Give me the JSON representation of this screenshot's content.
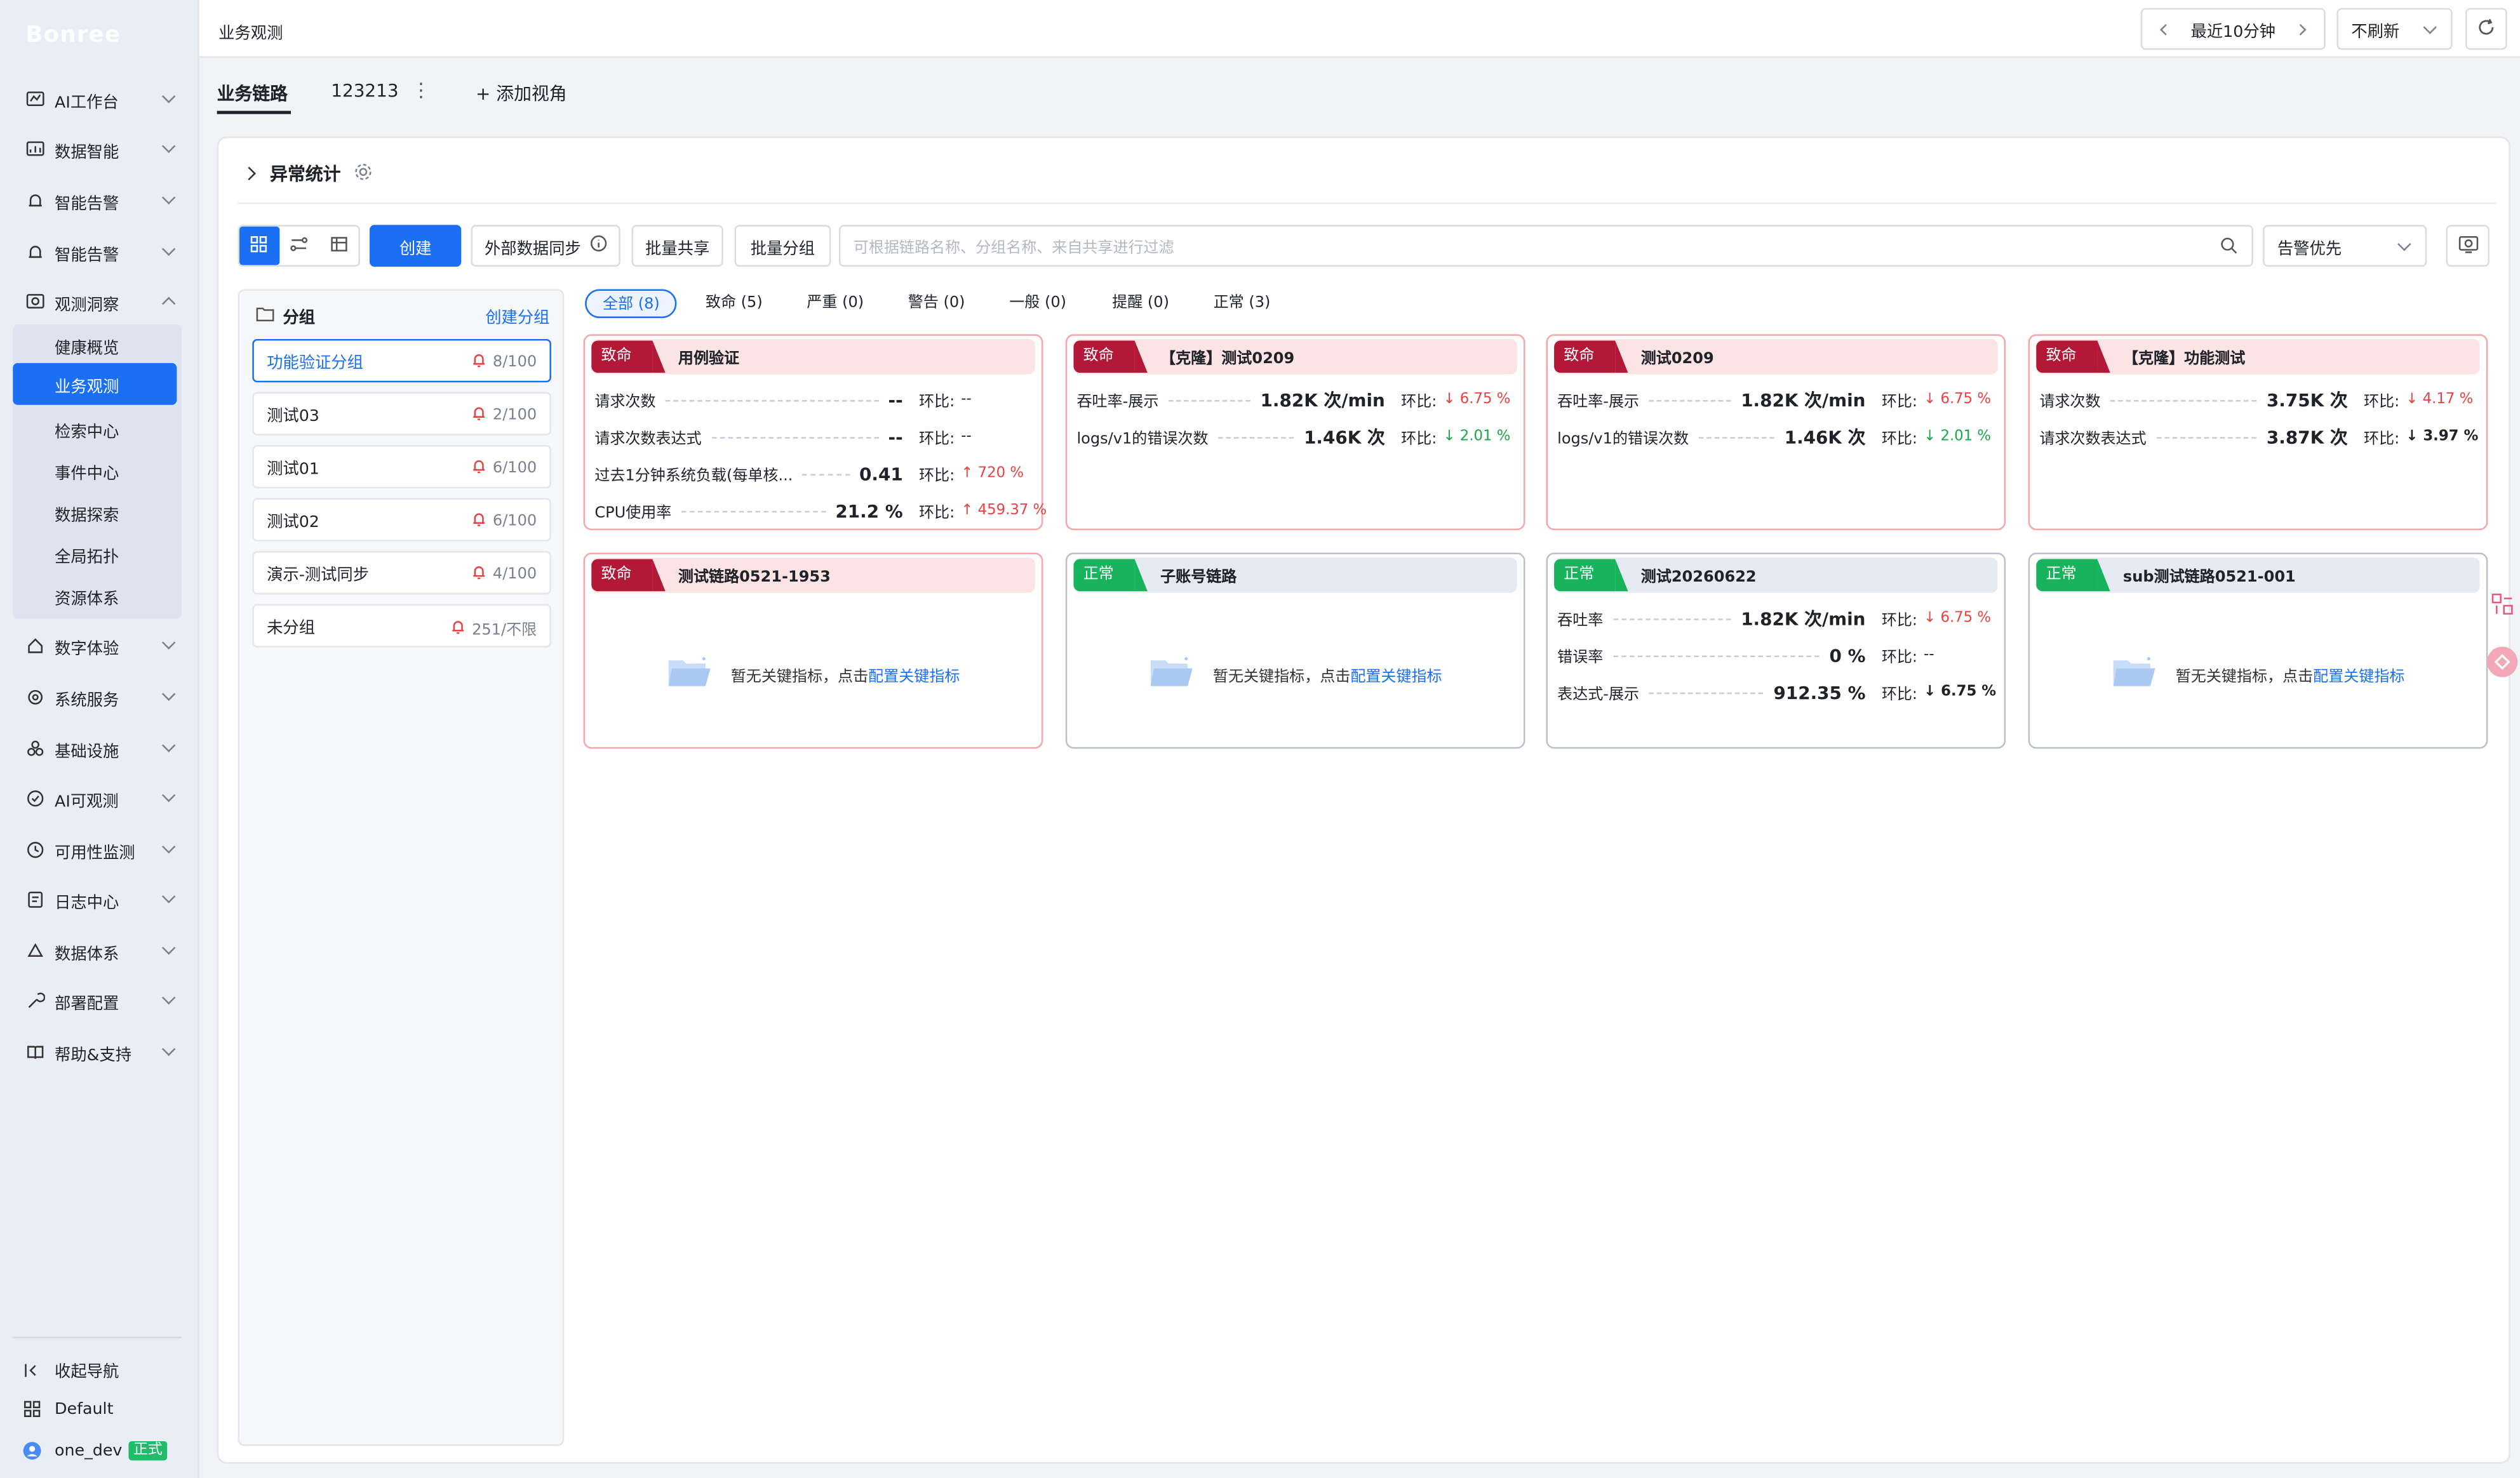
{
  "brand": "Bonree",
  "sidebar": {
    "items": [
      {
        "label": "AI工作台"
      },
      {
        "label": "数据智能"
      },
      {
        "label": "智能告警"
      },
      {
        "label": "智能告警"
      },
      {
        "label": "观测洞察"
      },
      {
        "label": "数字体验"
      },
      {
        "label": "系统服务"
      },
      {
        "label": "基础设施"
      },
      {
        "label": "AI可观测"
      },
      {
        "label": "可用性监测"
      },
      {
        "label": "日志中心"
      },
      {
        "label": "数据体系"
      },
      {
        "label": "部署配置"
      },
      {
        "label": "帮助&支持"
      }
    ],
    "subitems": [
      {
        "label": "健康概览"
      },
      {
        "label": "业务观测"
      },
      {
        "label": "检索中心"
      },
      {
        "label": "事件中心"
      },
      {
        "label": "数据探索"
      },
      {
        "label": "全局拓扑"
      },
      {
        "label": "资源体系"
      }
    ],
    "collapse_label": "收起导航",
    "workspace_label": "Default",
    "user_name": "one_dev",
    "user_tag": "正式"
  },
  "topbar": {
    "breadcrumb": "业务观测",
    "time_range": "最近10分钟",
    "refresh": "不刷新"
  },
  "tabs": [
    {
      "label": "业务链路"
    },
    {
      "label": "123213"
    },
    {
      "label": "+ 添加视角"
    }
  ],
  "section": {
    "title": "异常统计"
  },
  "toolbar": {
    "create": "创建",
    "external_sync": "外部数据同步",
    "batch_share": "批量共享",
    "batch_group": "批量分组",
    "search_placeholder": "可根据链路名称、分组名称、来自共享进行过滤",
    "sort": "告警优先"
  },
  "groups": {
    "title": "分组",
    "create": "创建分组",
    "items": [
      {
        "name": "功能验证分组",
        "count": "8/100"
      },
      {
        "name": "测试03",
        "count": "2/100"
      },
      {
        "name": "测试01",
        "count": "6/100"
      },
      {
        "name": "测试02",
        "count": "6/100"
      },
      {
        "name": "演示-测试同步",
        "count": "4/100"
      },
      {
        "name": "未分组",
        "count": "251/不限"
      }
    ]
  },
  "filters": [
    {
      "label": "全部 (8)"
    },
    {
      "label": "致命 (5)"
    },
    {
      "label": "严重 (0)"
    },
    {
      "label": "警告 (0)"
    },
    {
      "label": "一般 (0)"
    },
    {
      "label": "提醒 (0)"
    },
    {
      "label": "正常 (3)"
    }
  ],
  "change_label": "环比:",
  "empty_text": "暂无关键指标，点击",
  "empty_link": "配置关键指标",
  "cards": [
    {
      "status": "致命",
      "title": "用例验证",
      "metrics": [
        {
          "name": "请求次数",
          "value": "--",
          "change": "--"
        },
        {
          "name": "请求次数表达式",
          "value": "--",
          "change": "--"
        },
        {
          "name": "过去1分钟系统负载(每单核...",
          "value": "0.41",
          "change": "↑ 720 %"
        },
        {
          "name": "CPU使用率",
          "value": "21.2 %",
          "change": "↑ 459.37 %"
        }
      ]
    },
    {
      "status": "致命",
      "title": "【克隆】测试0209",
      "metrics": [
        {
          "name": "吞吐率-展示",
          "value": "1.82K 次/min",
          "change": "↓ 6.75 %"
        },
        {
          "name": "logs/v1的错误次数",
          "value": "1.46K 次",
          "change": "↓ 2.01 %"
        }
      ]
    },
    {
      "status": "致命",
      "title": "测试0209",
      "metrics": [
        {
          "name": "吞吐率-展示",
          "value": "1.82K 次/min",
          "change": "↓ 6.75 %"
        },
        {
          "name": "logs/v1的错误次数",
          "value": "1.46K 次",
          "change": "↓ 2.01 %"
        }
      ]
    },
    {
      "status": "致命",
      "title": "【克隆】功能测试",
      "metrics": [
        {
          "name": "请求次数",
          "value": "3.75K 次",
          "change": "↓ 4.17 %"
        },
        {
          "name": "请求次数表达式",
          "value": "3.87K 次",
          "change": "↓ 3.97 %"
        }
      ]
    },
    {
      "status": "致命",
      "title": "测试链路0521-1953"
    },
    {
      "status": "正常",
      "title": "子账号链路"
    },
    {
      "status": "正常",
      "title": "测试20260622",
      "metrics": [
        {
          "name": "吞吐率",
          "value": "1.82K 次/min",
          "change": "↓ 6.75 %"
        },
        {
          "name": "错误率",
          "value": "0 %",
          "change": "--"
        },
        {
          "name": "表达式-展示",
          "value": "912.35 %",
          "change": "↓ 6.75 %"
        }
      ]
    },
    {
      "status": "正常",
      "title": "sub测试链路0521-001"
    }
  ],
  "colors": {
    "primary": "#1b6ff5",
    "fatal": "#b31837",
    "normal": "#19b35d",
    "up_red": "#e84242",
    "down_green": "#1aa64a"
  }
}
